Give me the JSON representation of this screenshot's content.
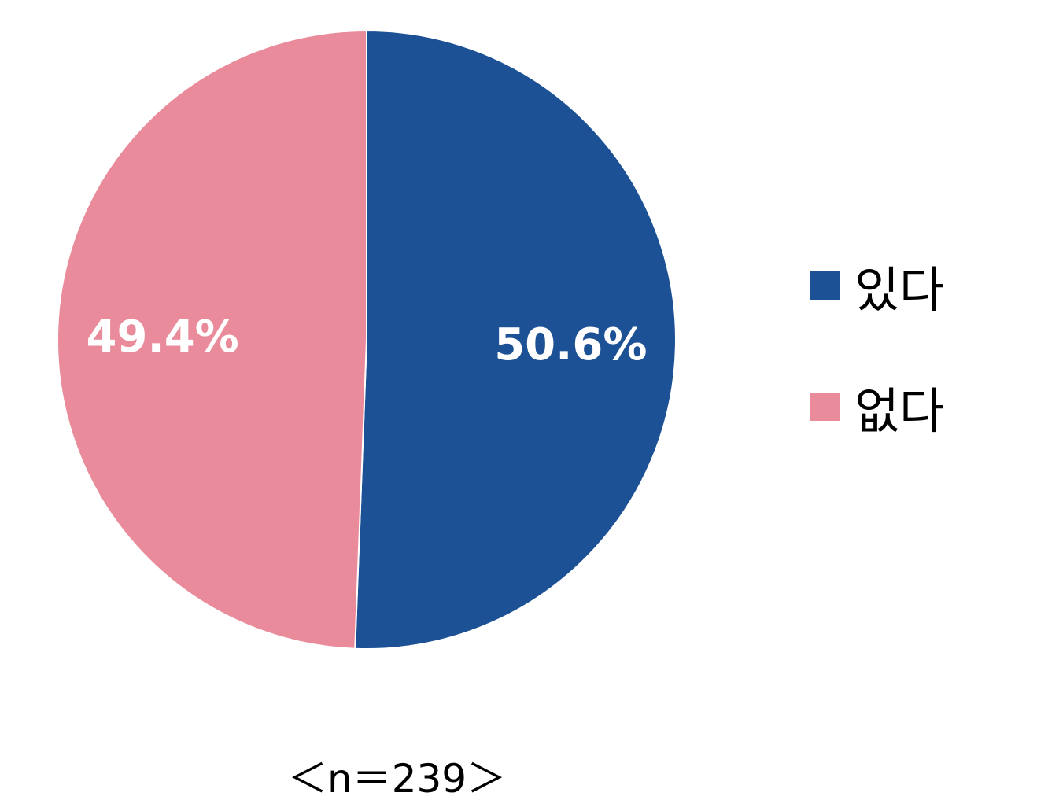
{
  "chart_data": {
    "type": "pie",
    "categories": [
      "있다",
      "없다"
    ],
    "values": [
      50.6,
      49.4
    ],
    "labels": [
      "50.6%",
      "49.4%"
    ],
    "colors": [
      "#1D5195",
      "#E98B9A"
    ],
    "start": "12 o'clock, clockwise",
    "legend_position": "right",
    "note": "＜n＝239＞"
  }
}
